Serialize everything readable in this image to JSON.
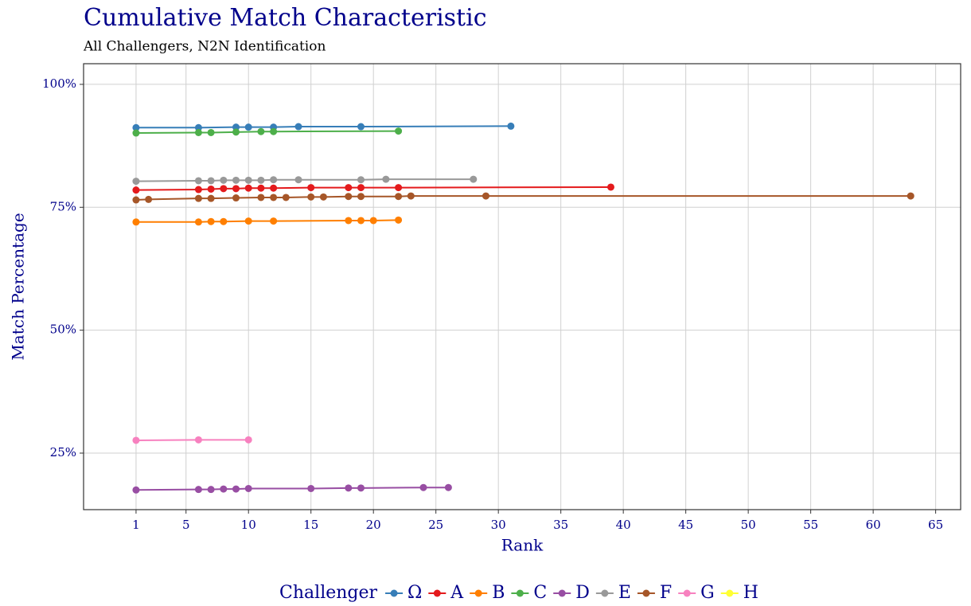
{
  "chart_data": {
    "type": "line",
    "title": "Cumulative Match Characteristic",
    "subtitle": "All Challengers, N2N Identification",
    "x_label": "Rank",
    "y_label": "Match Percentage",
    "legend_title": "Challenger",
    "legend": "bottom",
    "grid": true,
    "xlim": [
      -3.2,
      67
    ],
    "xticks": [
      1,
      5,
      10,
      15,
      20,
      25,
      30,
      35,
      40,
      45,
      50,
      55,
      60,
      65
    ],
    "ylim": [
      13.5,
      104.2
    ],
    "yticks": [
      {
        "value": 25,
        "label": "25%"
      },
      {
        "value": 50,
        "label": "50%"
      },
      {
        "value": 75,
        "label": "75%"
      },
      {
        "value": 100,
        "label": "100%"
      }
    ],
    "series": [
      {
        "name": "Ω",
        "color": "#377eb8",
        "x": [
          1,
          6,
          9,
          10,
          12,
          14,
          19,
          31
        ],
        "values": [
          91.2,
          91.2,
          91.3,
          91.3,
          91.3,
          91.4,
          91.4,
          91.5
        ]
      },
      {
        "name": "A",
        "color": "#e41a1c",
        "x": [
          1,
          6,
          7,
          8,
          9,
          10,
          11,
          12,
          15,
          18,
          19,
          22,
          39
        ],
        "values": [
          78.5,
          78.6,
          78.7,
          78.8,
          78.8,
          78.9,
          78.9,
          78.9,
          79.0,
          79.0,
          79.0,
          79.0,
          79.1
        ]
      },
      {
        "name": "B",
        "color": "#ff7f00",
        "x": [
          1,
          6,
          7,
          8,
          10,
          12,
          18,
          19,
          20,
          22
        ],
        "values": [
          72.0,
          72.0,
          72.1,
          72.1,
          72.2,
          72.2,
          72.3,
          72.3,
          72.3,
          72.4
        ]
      },
      {
        "name": "C",
        "color": "#4daf4a",
        "x": [
          1,
          6,
          7,
          9,
          11,
          12,
          22
        ],
        "values": [
          90.1,
          90.2,
          90.2,
          90.3,
          90.4,
          90.4,
          90.5
        ]
      },
      {
        "name": "D",
        "color": "#984ea3",
        "x": [
          1,
          6,
          7,
          8,
          9,
          10,
          15,
          18,
          19,
          24,
          26
        ],
        "values": [
          17.5,
          17.6,
          17.6,
          17.7,
          17.7,
          17.8,
          17.8,
          17.9,
          17.9,
          18.0,
          18.0
        ]
      },
      {
        "name": "E",
        "color": "#999999",
        "x": [
          1,
          6,
          7,
          8,
          9,
          10,
          11,
          12,
          14,
          19,
          21,
          28
        ],
        "values": [
          80.3,
          80.4,
          80.4,
          80.5,
          80.5,
          80.5,
          80.5,
          80.6,
          80.6,
          80.6,
          80.7,
          80.7
        ]
      },
      {
        "name": "F",
        "color": "#a65628",
        "x": [
          1,
          2,
          6,
          7,
          9,
          11,
          12,
          13,
          15,
          16,
          18,
          19,
          22,
          23,
          29,
          63
        ],
        "values": [
          76.5,
          76.6,
          76.8,
          76.8,
          76.9,
          77.0,
          77.0,
          77.0,
          77.1,
          77.1,
          77.2,
          77.2,
          77.2,
          77.3,
          77.3,
          77.3
        ]
      },
      {
        "name": "G",
        "color": "#f781bf",
        "x": [
          1,
          6,
          10
        ],
        "values": [
          27.6,
          27.7,
          27.7
        ]
      },
      {
        "name": "H",
        "color": "#ffff33",
        "x": [],
        "values": []
      }
    ]
  }
}
